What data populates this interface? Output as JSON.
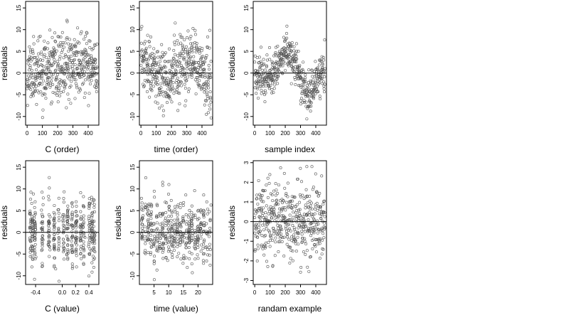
{
  "figure": {
    "point_color": "#555555",
    "point_shape": "open-circle"
  },
  "chart_data": [
    {
      "id": "c-order",
      "type": "scatter",
      "xlabel": "C (order)",
      "ylabel": "residuals",
      "xlim": [
        -10,
        470
      ],
      "ylim": [
        -12,
        16.5
      ],
      "xticks": [
        0,
        100,
        200,
        300,
        400
      ],
      "xtick_labels": [
        "0",
        "100",
        "200",
        "300",
        "400"
      ],
      "yticks": [
        -10,
        -5,
        0,
        5,
        10,
        15
      ],
      "ytick_labels": [
        "-10",
        "-5",
        "0",
        "5",
        "10",
        "15"
      ],
      "hline": 0,
      "n": 470,
      "x_range": [
        0,
        460
      ],
      "y_trend": [
        [
          0,
          0.5
        ],
        [
          100,
          0
        ],
        [
          200,
          0.5
        ],
        [
          300,
          2.5
        ],
        [
          400,
          1.5
        ],
        [
          460,
          0
        ]
      ],
      "y_spread": 3.6,
      "x_mode": "index",
      "seed": 11
    },
    {
      "id": "time-order",
      "type": "scatter",
      "xlabel": "time (order)",
      "ylabel": "residuals",
      "xlim": [
        -10,
        470
      ],
      "ylim": [
        -12,
        16.5
      ],
      "xticks": [
        0,
        100,
        200,
        300,
        400
      ],
      "xtick_labels": [
        "0",
        "100",
        "200",
        "300",
        "400"
      ],
      "yticks": [
        -10,
        -5,
        0,
        5,
        10,
        15
      ],
      "ytick_labels": [
        "-10",
        "-5",
        "0",
        "5",
        "10",
        "15"
      ],
      "hline": 0,
      "n": 470,
      "x_range": [
        0,
        460
      ],
      "y_trend": [
        [
          0,
          3
        ],
        [
          80,
          0
        ],
        [
          200,
          -1
        ],
        [
          300,
          2
        ],
        [
          400,
          1
        ],
        [
          460,
          -3
        ]
      ],
      "y_spread": 3.6,
      "x_mode": "index",
      "seed": 23
    },
    {
      "id": "sample-index",
      "type": "scatter",
      "xlabel": "sample index",
      "ylabel": "residuals",
      "xlim": [
        -10,
        470
      ],
      "ylim": [
        -12,
        16.5
      ],
      "xticks": [
        0,
        100,
        200,
        300,
        400
      ],
      "xtick_labels": [
        "0",
        "100",
        "200",
        "300",
        "400"
      ],
      "yticks": [
        -10,
        -5,
        0,
        5,
        10,
        15
      ],
      "ytick_labels": [
        "-10",
        "-5",
        "0",
        "5",
        "10",
        "15"
      ],
      "hline": 0,
      "n": 470,
      "x_range": [
        0,
        460
      ],
      "y_trend": [
        [
          0,
          0
        ],
        [
          100,
          -1
        ],
        [
          200,
          5
        ],
        [
          260,
          3
        ],
        [
          320,
          -3
        ],
        [
          350,
          -6
        ],
        [
          400,
          -2
        ],
        [
          460,
          1
        ]
      ],
      "y_spread": 2.2,
      "x_mode": "index",
      "seed": 37
    },
    {
      "id": "c-value",
      "type": "scatter",
      "xlabel": "C (value)",
      "ylabel": "residuals",
      "xlim": [
        -0.55,
        0.55
      ],
      "ylim": [
        -12,
        16.5
      ],
      "xticks": [
        -0.4,
        0.0,
        0.2,
        0.4
      ],
      "xtick_labels": [
        "-0.4",
        "0.0",
        "0.2",
        "0.4"
      ],
      "yticks": [
        -10,
        -5,
        0,
        5,
        10,
        15
      ],
      "ytick_labels": [
        "-10",
        "-5",
        "0",
        "5",
        "10",
        "15"
      ],
      "hline": 0,
      "n": 470,
      "x_levels": [
        -0.48,
        -0.45,
        -0.41,
        -0.3,
        -0.2,
        -0.12,
        -0.05,
        0.02,
        0.08,
        0.15,
        0.21,
        0.28,
        0.32,
        0.41,
        0.45,
        0.48
      ],
      "y_trend": [
        [
          -0.5,
          0
        ],
        [
          0,
          0.5
        ],
        [
          0.5,
          0
        ]
      ],
      "y_spread": 3.8,
      "x_mode": "levels",
      "seed": 53
    },
    {
      "id": "time-value",
      "type": "scatter",
      "xlabel": "time (value)",
      "ylabel": "residuals",
      "xlim": [
        0,
        25
      ],
      "ylim": [
        -12,
        16.5
      ],
      "xticks": [
        5,
        10,
        15,
        20
      ],
      "xtick_labels": [
        "5",
        "10",
        "15",
        "20"
      ],
      "yticks": [
        -10,
        -5,
        0,
        5,
        10,
        15
      ],
      "ytick_labels": [
        "-10",
        "-5",
        "0",
        "5",
        "10",
        "15"
      ],
      "hline": 0,
      "n": 470,
      "x_levels": [
        1,
        2,
        3,
        4,
        5,
        6,
        7,
        8,
        9,
        10,
        11,
        12,
        13,
        14,
        15,
        16,
        17,
        18,
        19,
        20,
        21,
        22,
        23,
        24
      ],
      "y_trend": [
        [
          0,
          1
        ],
        [
          12,
          0
        ],
        [
          24,
          0
        ]
      ],
      "y_spread": 3.8,
      "x_mode": "levels",
      "seed": 71
    },
    {
      "id": "randam-example",
      "type": "scatter",
      "xlabel": "randam example",
      "ylabel": "residuals",
      "xlim": [
        -10,
        470
      ],
      "ylim": [
        -3.2,
        3.1
      ],
      "xticks": [
        0,
        100,
        200,
        300,
        400
      ],
      "xtick_labels": [
        "0",
        "100",
        "200",
        "300",
        "400"
      ],
      "yticks": [
        -3,
        -2,
        -1,
        0,
        1,
        2,
        3
      ],
      "ytick_labels": [
        "-3",
        "-2",
        "-1",
        "0",
        "1",
        "2",
        "3"
      ],
      "hline": 0,
      "n": 470,
      "x_range": [
        0,
        460
      ],
      "y_trend": [
        [
          0,
          0
        ],
        [
          460,
          0
        ]
      ],
      "y_spread": 1.0,
      "x_mode": "index",
      "seed": 97
    }
  ]
}
